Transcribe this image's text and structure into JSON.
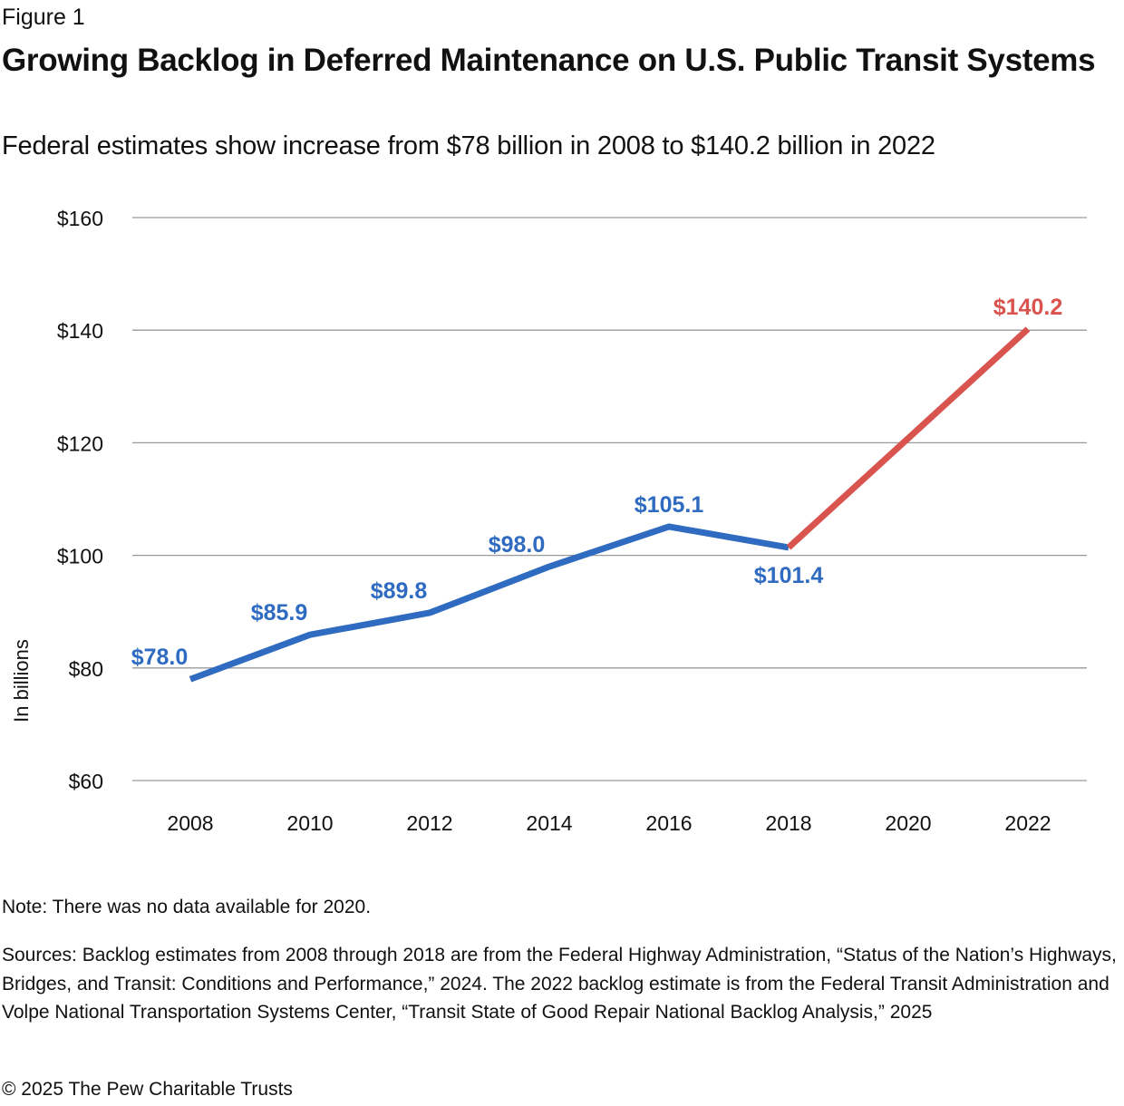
{
  "header": {
    "figure_label": "Figure 1",
    "title": "Growing Backlog in Deferred Maintenance on U.S. Public Transit Systems",
    "subtitle": "Federal estimates show increase from $78 billion in 2008 to $140.2 billion in 2022"
  },
  "chart_data": {
    "type": "line",
    "title": "Growing Backlog in Deferred Maintenance on U.S. Public Transit Systems",
    "subtitle": "Federal estimates show increase from $78 billion in 2008 to $140.2 billion in 2022",
    "xlabel": "",
    "ylabel": "In billions",
    "ylim": [
      60,
      160
    ],
    "y_ticks": [
      60,
      80,
      100,
      120,
      140,
      160
    ],
    "y_tick_labels": [
      "$60",
      "$80",
      "$100",
      "$120",
      "$140",
      "$160"
    ],
    "categories": [
      "2008",
      "2010",
      "2012",
      "2014",
      "2016",
      "2018",
      "2020",
      "2022"
    ],
    "grid": true,
    "legend": "none",
    "series": [
      {
        "color": "#2f6bc1",
        "x": [
          "2008",
          "2010",
          "2012",
          "2014",
          "2016",
          "2018"
        ],
        "values": [
          78.0,
          85.9,
          89.8,
          98.0,
          105.1,
          101.4
        ],
        "labels": [
          "$78.0",
          "$85.9",
          "$89.8",
          "$98.0",
          "$105.1",
          "$101.4"
        ]
      },
      {
        "color": "#d9534f",
        "x": [
          "2018",
          "2022"
        ],
        "values": [
          101.4,
          140.2
        ],
        "labels": [
          "",
          "$140.2"
        ]
      }
    ]
  },
  "footer": {
    "note": "Note: There was no data available for 2020.",
    "sources": "Sources: Backlog estimates from 2008 through 2018 are from the Federal Highway Administration, “Status of the Nation’s Highways, Bridges, and Transit: Conditions and Performance,” 2024. The 2022 backlog estimate is from the Federal Transit Administration and Volpe National Transportation Systems Center, “Transit State of Good Repair National Backlog Analysis,” 2025",
    "copyright": "© 2025 The Pew Charitable Trusts"
  }
}
